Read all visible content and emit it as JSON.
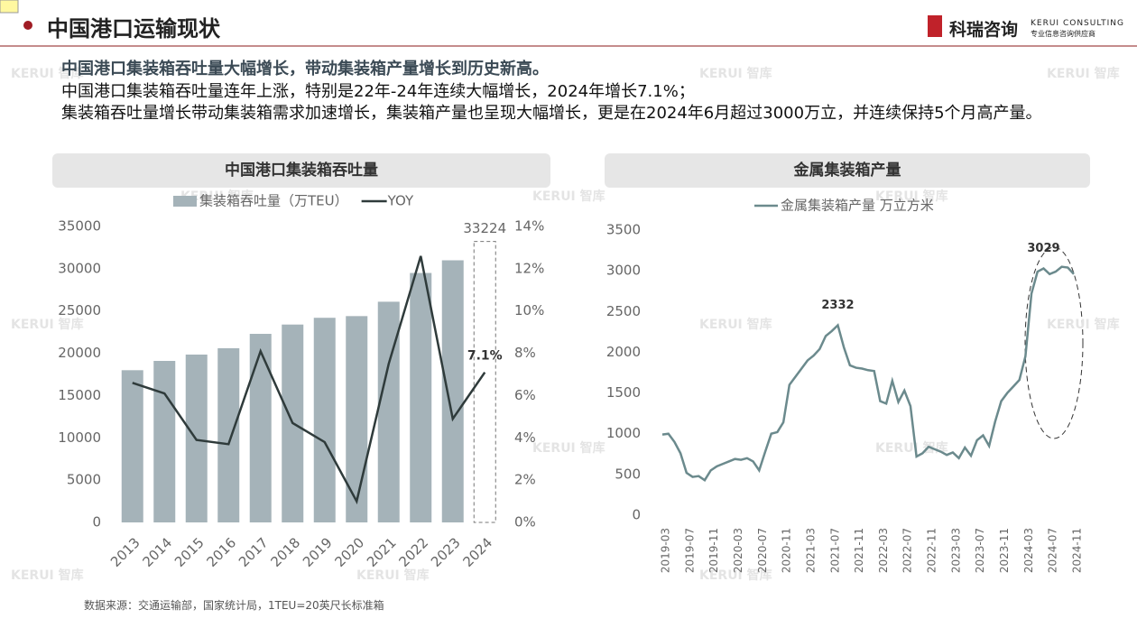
{
  "header": {
    "title": "中国港口运输现状",
    "logo_name": "科瑞咨询",
    "logo_en": "KERUI CONSULTING",
    "logo_sub": "专业信息咨询供应商"
  },
  "intro": {
    "headline": "中国港口集装箱吞吐量大幅增长，带动集装箱产量增长到历史新高。",
    "paragraphs": [
      "中国港口集装箱吞吐量连年上涨，特别是22年-24年连续大幅增长，2024年增长7.1%；",
      "集装箱吞吐量增长带动集装箱需求加速增长，集装箱产量也呈现大幅增长，更是在2024年6月超过3000万立，并连续保持5个月高产量。"
    ]
  },
  "source": "数据来源：交通运输部，国家统计局，1TEU=20英尺长标准箱",
  "watermark": "KERUI 智库",
  "chart_data": [
    {
      "type": "bar",
      "title": "中国港口集装箱吞吐量",
      "categories": [
        "2013",
        "2014",
        "2015",
        "2016",
        "2017",
        "2018",
        "2019",
        "2020",
        "2021",
        "2022",
        "2023",
        "2024"
      ],
      "series": [
        {
          "name": "集装箱吞吐量（万TEU）",
          "color": "#a5b3b9",
          "values": [
            18000,
            19100,
            19850,
            20600,
            22300,
            23400,
            24200,
            24400,
            26100,
            29500,
            31000,
            33224
          ],
          "value_labels": [
            null,
            null,
            null,
            null,
            null,
            null,
            null,
            null,
            null,
            null,
            null,
            "33224"
          ]
        },
        {
          "name": "YOY",
          "type": "line",
          "axis": "y2",
          "color": "#2f3b3b",
          "values": [
            6.6,
            6.1,
            3.9,
            3.7,
            8.1,
            4.7,
            3.8,
            1.0,
            7.5,
            12.6,
            4.9,
            7.1
          ],
          "value_labels": [
            null,
            null,
            null,
            null,
            null,
            null,
            null,
            null,
            null,
            null,
            null,
            "7.1%"
          ]
        }
      ],
      "ylim": [
        0,
        35000
      ],
      "yticks": [
        0,
        5000,
        10000,
        15000,
        20000,
        25000,
        30000,
        35000
      ],
      "y2lim": [
        0,
        14
      ],
      "y2ticks": [
        {
          "value": 0,
          "label": "0%"
        },
        {
          "value": 2,
          "label": "2%"
        },
        {
          "value": 4,
          "label": "4%"
        },
        {
          "value": 6,
          "label": "6%"
        },
        {
          "value": 8,
          "label": "8%"
        },
        {
          "value": 10,
          "label": "10%"
        },
        {
          "value": 12,
          "label": "12%"
        },
        {
          "value": 14,
          "label": "14%"
        }
      ],
      "legend": "top"
    },
    {
      "type": "line",
      "title": "金属集装箱产量",
      "categories": [
        "2019-03",
        null,
        null,
        null,
        "2019-07",
        null,
        null,
        null,
        "2019-11",
        null,
        null,
        null,
        "2020-03",
        null,
        null,
        null,
        "2020-07",
        null,
        null,
        null,
        "2020-11",
        null,
        null,
        null,
        "2021-03",
        null,
        null,
        null,
        "2021-07",
        null,
        null,
        null,
        "2021-11",
        null,
        null,
        null,
        "2022-03",
        null,
        null,
        null,
        "2022-07",
        null,
        null,
        null,
        "2022-11",
        null,
        null,
        null,
        "2023-03",
        null,
        null,
        null,
        "2023-07",
        null,
        null,
        null,
        "2023-11",
        null,
        null,
        null,
        "2024-03",
        null,
        null,
        null,
        "2024-07",
        null,
        null,
        null,
        "2024-11"
      ],
      "series": [
        {
          "name": "金属集装箱产量 万立方米",
          "color": "#6b8a8d",
          "values": [
            990,
            1000,
            900,
            760,
            520,
            470,
            480,
            430,
            550,
            600,
            630,
            660,
            690,
            680,
            700,
            660,
            550,
            780,
            1000,
            1020,
            1140,
            1600,
            1700,
            1800,
            1900,
            1960,
            2040,
            2200,
            2260,
            2332,
            2060,
            1840,
            1810,
            1800,
            1780,
            1770,
            1400,
            1370,
            1650,
            1390,
            1530,
            1340,
            720,
            760,
            840,
            810,
            780,
            740,
            770,
            700,
            830,
            730,
            920,
            980,
            850,
            1150,
            1400,
            1500,
            1580,
            1660,
            1950,
            2720,
            2990,
            3029,
            2960,
            2990,
            3050,
            3040,
            2960
          ],
          "value_labels": [
            null,
            null,
            null,
            null,
            null,
            null,
            null,
            null,
            null,
            null,
            null,
            null,
            null,
            null,
            null,
            null,
            null,
            null,
            null,
            null,
            null,
            null,
            null,
            null,
            null,
            null,
            null,
            null,
            null,
            "2332",
            null,
            null,
            null,
            null,
            null,
            null,
            null,
            null,
            null,
            null,
            null,
            null,
            null,
            null,
            null,
            null,
            null,
            null,
            null,
            null,
            null,
            null,
            null,
            null,
            null,
            null,
            null,
            null,
            null,
            null,
            null,
            null,
            null,
            "3029",
            null,
            null,
            null,
            null,
            null
          ]
        }
      ],
      "ylim": [
        0,
        3500
      ],
      "yticks": [
        0,
        500,
        1000,
        1500,
        2000,
        2500,
        3000,
        3500
      ],
      "legend": "top"
    }
  ]
}
